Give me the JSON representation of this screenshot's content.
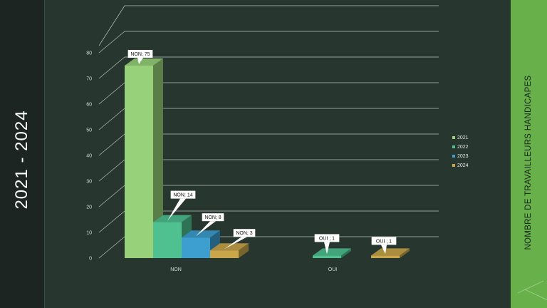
{
  "slide": {
    "left_title": "2021 - 2024",
    "right_title": "NOMBRE DE TRAVAILLEURS  HANDICAPES"
  },
  "chart_data": {
    "type": "bar",
    "categories": [
      "NON",
      "OUI"
    ],
    "series": [
      {
        "name": "2021",
        "values": [
          75,
          null
        ],
        "color": "#97d27a"
      },
      {
        "name": "2022",
        "values": [
          14,
          1
        ],
        "color": "#4fc08f"
      },
      {
        "name": "2023",
        "values": [
          8,
          null
        ],
        "color": "#3c9fd0"
      },
      {
        "name": "2024",
        "values": [
          3,
          1
        ],
        "color": "#c9a64a"
      }
    ],
    "data_labels": [
      {
        "series": "2021",
        "category": "NON",
        "text": "NON; 75"
      },
      {
        "series": "2022",
        "category": "NON",
        "text": "NON; 14"
      },
      {
        "series": "2023",
        "category": "NON",
        "text": "NON; 8"
      },
      {
        "series": "2024",
        "category": "NON",
        "text": "NON; 3"
      },
      {
        "series": "2022",
        "category": "OUI",
        "text": "OUI ; 1"
      },
      {
        "series": "2024",
        "category": "OUI",
        "text": "OUI ; 1"
      }
    ],
    "y_ticks": [
      0,
      10,
      20,
      30,
      40,
      50,
      60,
      70,
      80
    ],
    "ylim": [
      0,
      80
    ],
    "grid": true,
    "legend_position": "right",
    "style": "3d"
  }
}
